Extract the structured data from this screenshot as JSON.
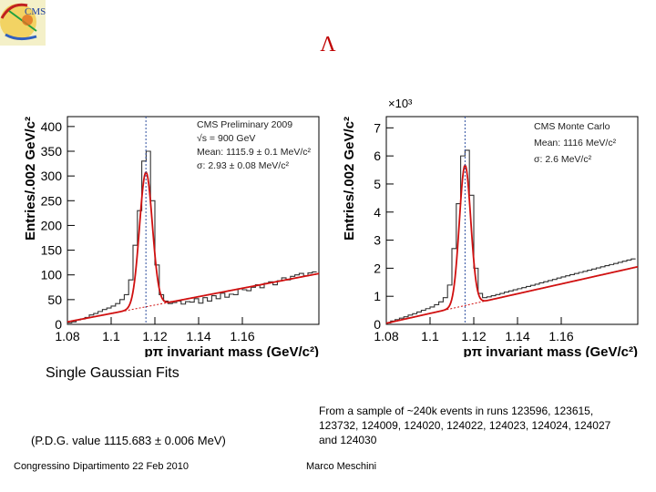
{
  "slide": {
    "title": "Λ",
    "caption": "Single Gaussian Fits",
    "pdg_note": "(P.D.G. value 1115.683 ± 0.006 MeV)",
    "sample_note": "From a sample of ~240k events in runs 123596, 123615, 123732, 124009, 124020, 124022, 124023, 124024, 124027 and 124030",
    "footer_left": "Congressino Dipartimento 22 Feb 2010",
    "footer_right": "Marco Meschini",
    "logo_text": "CMS"
  },
  "colors": {
    "histogram": "#333333",
    "fit": "#d01010",
    "background_fit": "#d01010",
    "peak_marker": "#3050a0"
  },
  "chart_data": [
    {
      "type": "line",
      "id": "data",
      "xlabel": "pπ invariant mass (GeV/c²)",
      "ylabel": "Entries/.002 GeV/c²",
      "xlim": [
        1.08,
        1.195
      ],
      "ylim": [
        0,
        420
      ],
      "xticks": [
        1.08,
        1.1,
        1.12,
        1.14,
        1.16
      ],
      "xtick_labels": [
        "1.08",
        "1.1",
        "1.12",
        "1.14",
        "1.16"
      ],
      "yticks": [
        0,
        50,
        100,
        150,
        200,
        250,
        300,
        350,
        400
      ],
      "ytick_labels": [
        "0",
        "50",
        "100",
        "150",
        "200",
        "250",
        "300",
        "350",
        "400"
      ],
      "exponent_label": "",
      "annotations": [
        "CMS Preliminary 2009",
        "√s = 900 GeV",
        "Mean: 1115.9 ± 0.1 MeV/c²",
        "σ: 2.93 ± 0.08 MeV/c²"
      ],
      "fit": {
        "mean": 1.1159,
        "sigma": 0.00293,
        "amplitude": 272,
        "bkg_start": 5,
        "bkg_slope": 850
      },
      "series": [
        {
          "name": "histogram",
          "x": [
            1.08,
            1.082,
            1.084,
            1.086,
            1.088,
            1.09,
            1.092,
            1.094,
            1.096,
            1.098,
            1.1,
            1.102,
            1.104,
            1.106,
            1.108,
            1.11,
            1.112,
            1.114,
            1.116,
            1.118,
            1.12,
            1.122,
            1.124,
            1.126,
            1.128,
            1.13,
            1.132,
            1.134,
            1.136,
            1.138,
            1.14,
            1.142,
            1.144,
            1.146,
            1.148,
            1.15,
            1.152,
            1.154,
            1.156,
            1.158,
            1.16,
            1.162,
            1.164,
            1.166,
            1.168,
            1.17,
            1.172,
            1.174,
            1.176,
            1.178,
            1.18,
            1.182,
            1.184,
            1.186,
            1.188,
            1.19,
            1.192
          ],
          "values": [
            3,
            5,
            9,
            11,
            14,
            19,
            22,
            26,
            30,
            33,
            37,
            42,
            50,
            60,
            90,
            160,
            230,
            330,
            350,
            250,
            120,
            60,
            47,
            42,
            44,
            47,
            41,
            46,
            45,
            52,
            43,
            54,
            47,
            58,
            52,
            63,
            55,
            61,
            60,
            72,
            70,
            68,
            75,
            80,
            74,
            83,
            86,
            80,
            88,
            94,
            90,
            97,
            100,
            103,
            98,
            104,
            106
          ]
        }
      ]
    },
    {
      "type": "line",
      "id": "mc",
      "xlabel": "pπ invariant mass (GeV/c²)",
      "ylabel": "Entries/.002 GeV/c²",
      "xlim": [
        1.08,
        1.195
      ],
      "ylim": [
        0,
        7400
      ],
      "xticks": [
        1.08,
        1.1,
        1.12,
        1.14,
        1.16
      ],
      "xtick_labels": [
        "1.08",
        "1.1",
        "1.12",
        "1.14",
        "1.16"
      ],
      "yticks": [
        0,
        1000,
        2000,
        3000,
        4000,
        5000,
        6000,
        7000
      ],
      "ytick_labels": [
        "0",
        "1",
        "2",
        "3",
        "4",
        "5",
        "6",
        "7"
      ],
      "exponent_label": "×10³",
      "annotations": [
        "CMS Monte Carlo",
        "Mean: 1116 MeV/c²",
        "σ: 2.6 MeV/c²"
      ],
      "fit": {
        "mean": 1.116,
        "sigma": 0.0026,
        "amplitude": 5000,
        "bkg_start": 40,
        "bkg_slope": 17500
      },
      "series": [
        {
          "name": "histogram",
          "x": [
            1.08,
            1.082,
            1.084,
            1.086,
            1.088,
            1.09,
            1.092,
            1.094,
            1.096,
            1.098,
            1.1,
            1.102,
            1.104,
            1.106,
            1.108,
            1.11,
            1.112,
            1.114,
            1.116,
            1.118,
            1.12,
            1.122,
            1.124,
            1.126,
            1.128,
            1.13,
            1.132,
            1.134,
            1.136,
            1.138,
            1.14,
            1.142,
            1.144,
            1.146,
            1.148,
            1.15,
            1.152,
            1.154,
            1.156,
            1.158,
            1.16,
            1.162,
            1.164,
            1.166,
            1.168,
            1.17,
            1.172,
            1.174,
            1.176,
            1.178,
            1.18,
            1.182,
            1.184,
            1.186,
            1.188,
            1.19,
            1.192
          ],
          "values": [
            50,
            120,
            170,
            220,
            270,
            330,
            380,
            440,
            500,
            560,
            620,
            700,
            800,
            950,
            1400,
            2700,
            4300,
            6000,
            6200,
            4600,
            2000,
            1100,
            950,
            980,
            1020,
            1060,
            1100,
            1150,
            1190,
            1230,
            1270,
            1310,
            1350,
            1390,
            1430,
            1480,
            1520,
            1560,
            1600,
            1650,
            1690,
            1730,
            1770,
            1810,
            1850,
            1890,
            1930,
            1970,
            2010,
            2050,
            2090,
            2130,
            2170,
            2210,
            2250,
            2290,
            2330
          ]
        }
      ]
    }
  ]
}
